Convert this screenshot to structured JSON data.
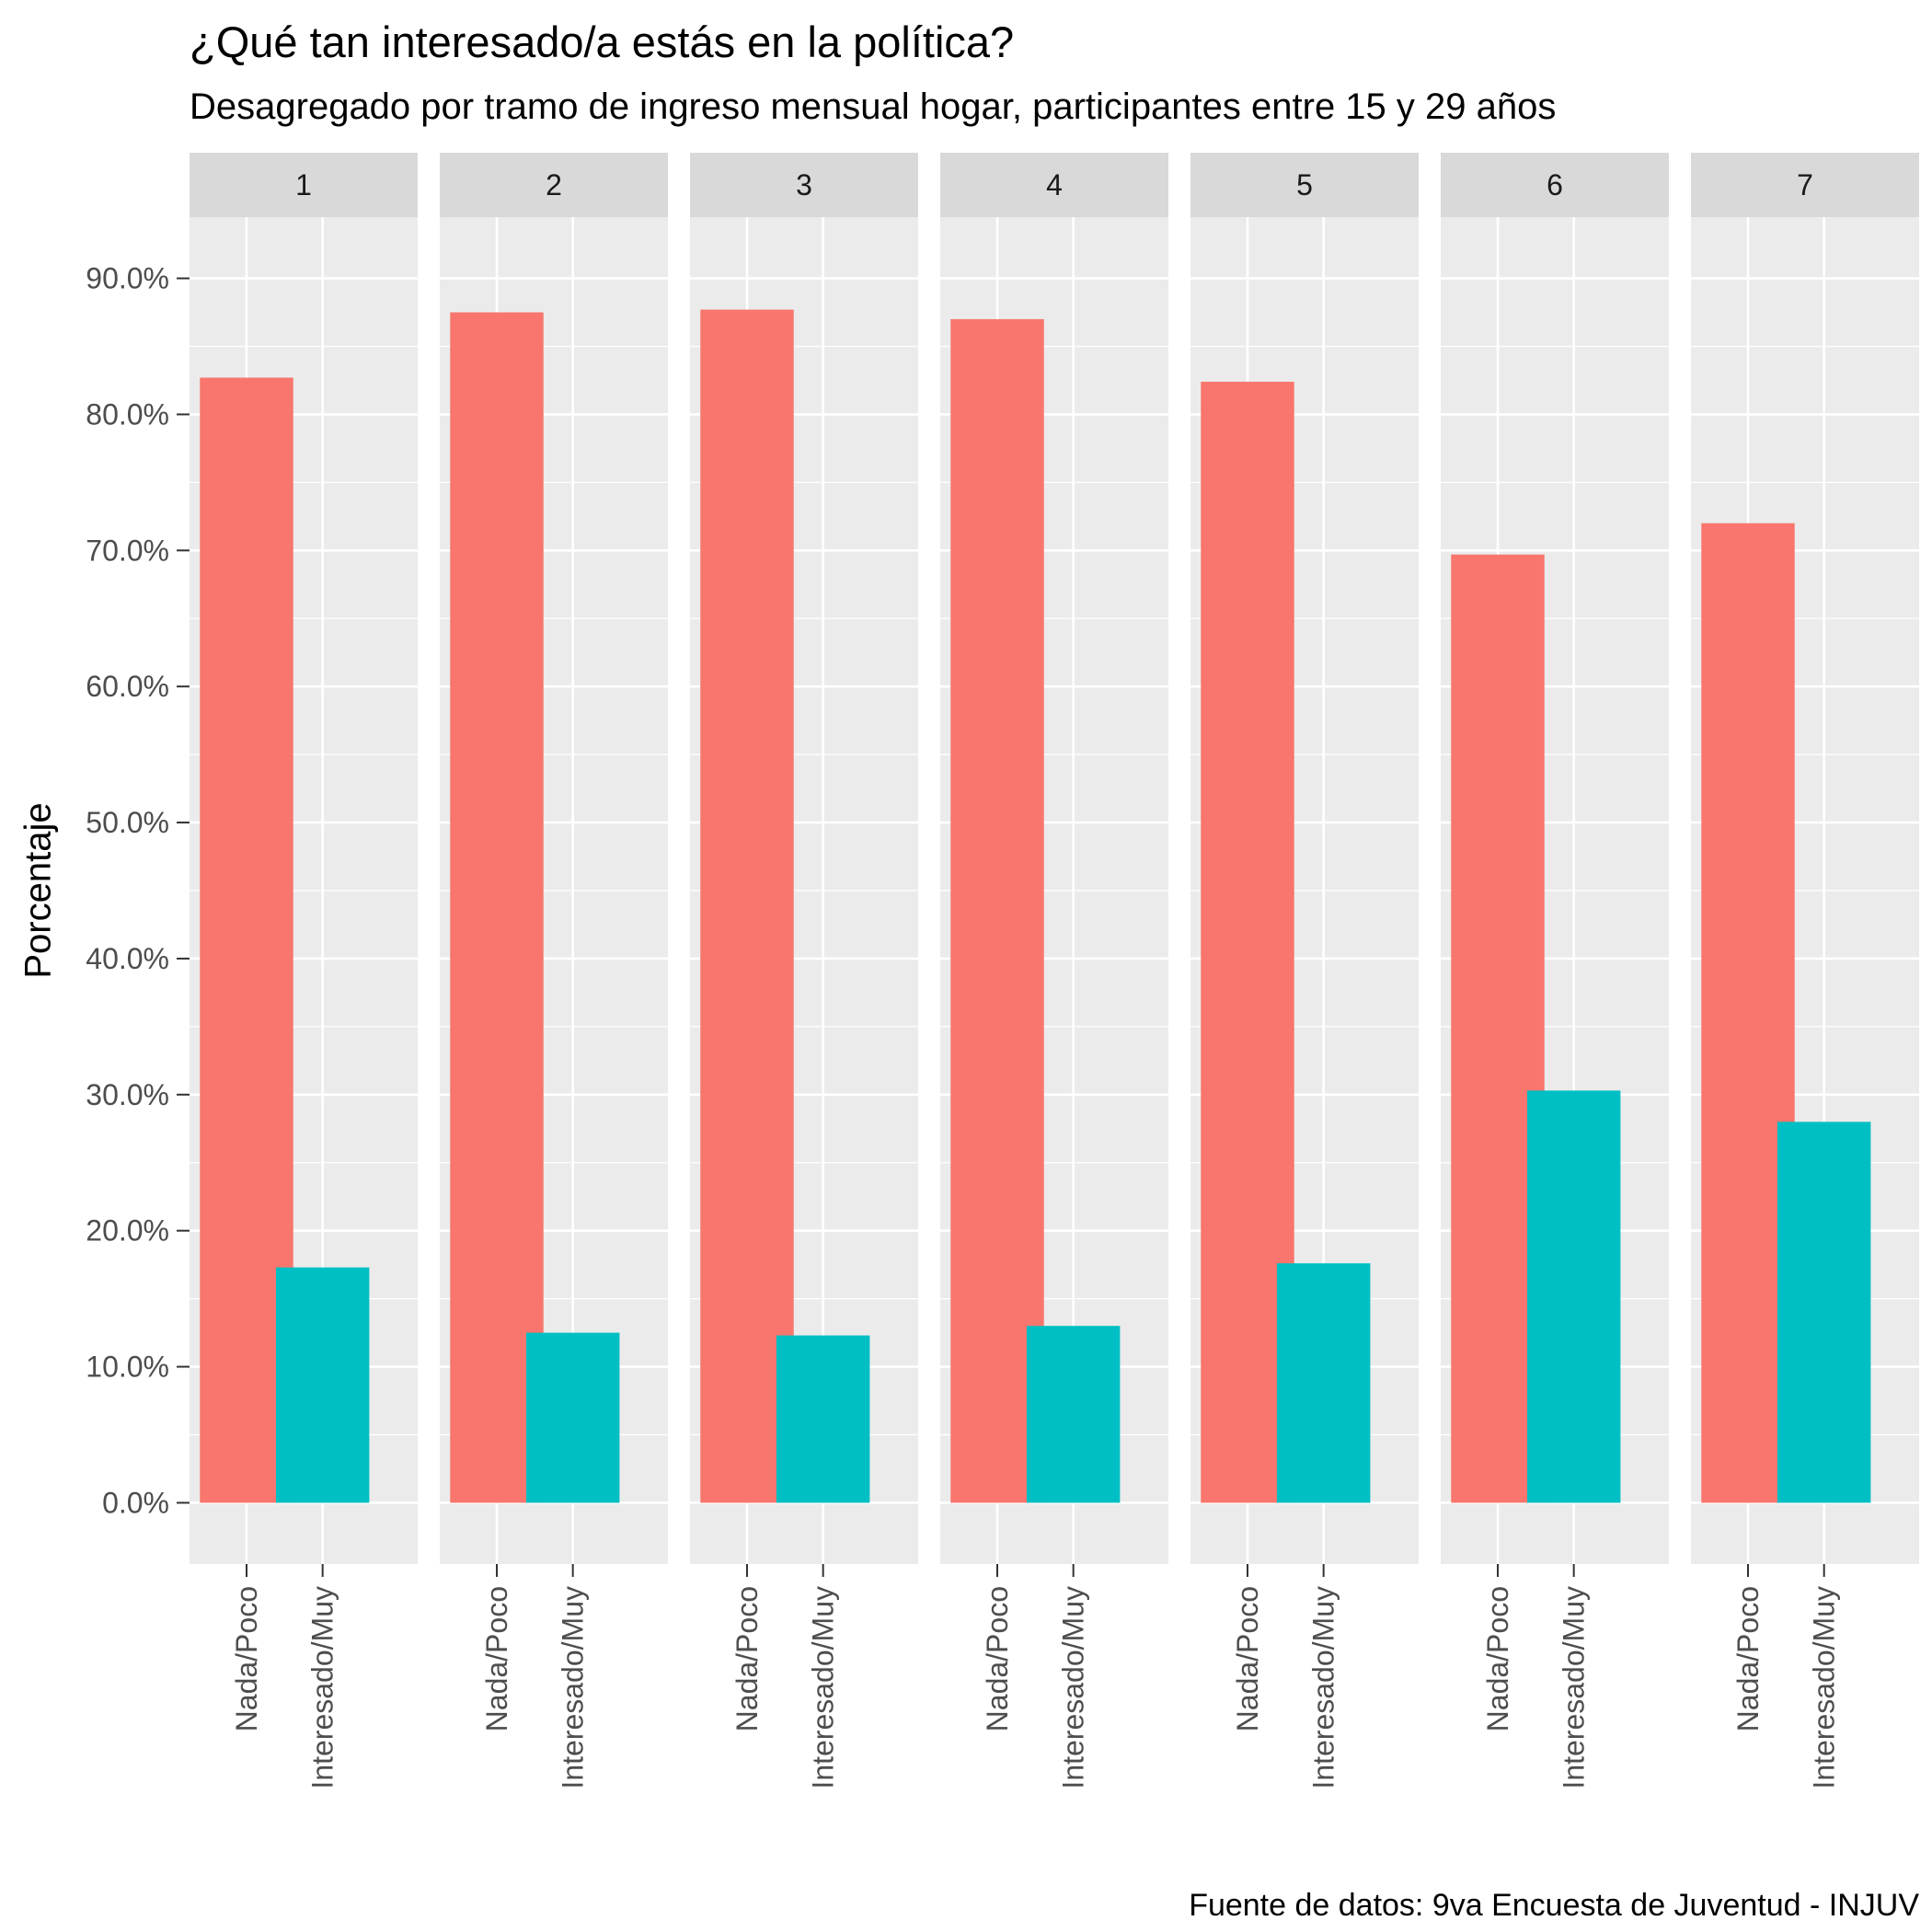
{
  "chart_data": {
    "type": "bar",
    "title": "¿Qué tan interesado/a estás en la política?",
    "subtitle": "Desagregado por tramo de ingreso mensual hogar, participantes entre 15 y 29 años",
    "caption": "Fuente de datos: 9va Encuesta de Juventud - INJUV",
    "ylabel": "Porcentaje",
    "xlabel": "",
    "ylim": [
      -4.5,
      94.5
    ],
    "yticks": [
      0,
      10,
      20,
      30,
      40,
      50,
      60,
      70,
      80,
      90
    ],
    "ytick_labels": [
      "0.0%",
      "10.0%",
      "20.0%",
      "30.0%",
      "40.0%",
      "50.0%",
      "60.0%",
      "70.0%",
      "80.0%",
      "90.0%"
    ],
    "grid": true,
    "legend": "none",
    "categories": [
      "Nada/Poco",
      "Interesado/Muy"
    ],
    "colors": [
      "#F8766D",
      "#00BFC4"
    ],
    "facets": [
      {
        "label": "1",
        "values": [
          82.7,
          17.3
        ]
      },
      {
        "label": "2",
        "values": [
          87.5,
          12.5
        ]
      },
      {
        "label": "3",
        "values": [
          87.7,
          12.3
        ]
      },
      {
        "label": "4",
        "values": [
          87.0,
          13.0
        ]
      },
      {
        "label": "5",
        "values": [
          82.4,
          17.6
        ]
      },
      {
        "label": "6",
        "values": [
          69.7,
          30.3
        ]
      },
      {
        "label": "7",
        "values": [
          72.0,
          28.0
        ]
      }
    ]
  }
}
